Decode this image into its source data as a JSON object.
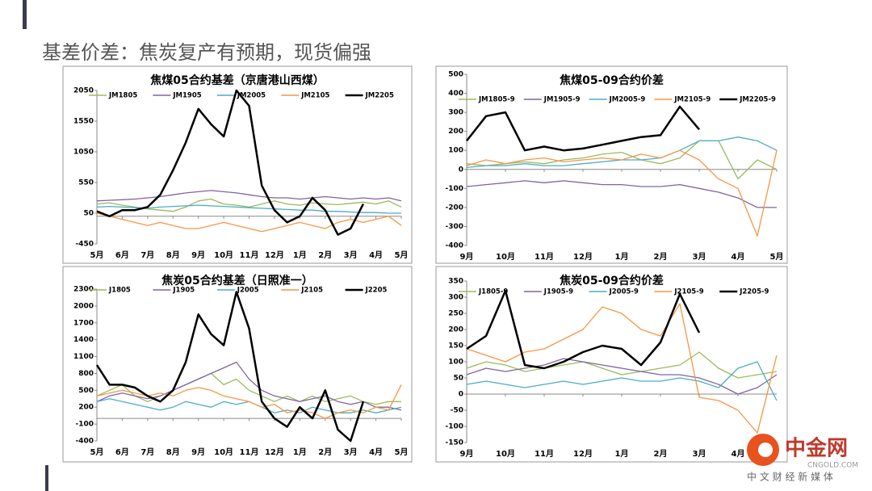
{
  "header": {
    "title": "基差价差：焦炭复产有预期，现货偏强"
  },
  "watermark": {
    "name": "中金网",
    "url": "CNGOLD.COM",
    "tagline": "中 文 财 经 新 媒 体"
  },
  "chart_data": [
    {
      "type": "line",
      "title": "焦煤05合约基差（京唐港山西煤）",
      "x": [
        0,
        0.5,
        1,
        1.5,
        2,
        2.5,
        3,
        3.5,
        4,
        4.5,
        5,
        5.5,
        6,
        6.5,
        7,
        7.5,
        8,
        8.5,
        9,
        9.5,
        10,
        10.5,
        11,
        11.5,
        12
      ],
      "xlim": [
        0,
        12
      ],
      "xticks": [
        {
          "value": 0,
          "label": "5月"
        },
        {
          "value": 1,
          "label": "6月"
        },
        {
          "value": 2,
          "label": "7月"
        },
        {
          "value": 3,
          "label": "8月"
        },
        {
          "value": 4,
          "label": "9月"
        },
        {
          "value": 5,
          "label": "10月"
        },
        {
          "value": 6,
          "label": "11月"
        },
        {
          "value": 7,
          "label": "12月"
        },
        {
          "value": 8,
          "label": "1月"
        },
        {
          "value": 9,
          "label": "2月"
        },
        {
          "value": 10,
          "label": "3月"
        },
        {
          "value": 11,
          "label": "4月"
        },
        {
          "value": 12,
          "label": "5月"
        }
      ],
      "ylim": [
        -450,
        2050
      ],
      "yticks": [
        -450,
        50,
        550,
        1050,
        1550,
        2050
      ],
      "series": [
        {
          "name": "JM1805",
          "color": "#9bbb59",
          "values": [
            200,
            220,
            180,
            150,
            120,
            100,
            80,
            150,
            250,
            280,
            200,
            180,
            150,
            200,
            250,
            200,
            180,
            220,
            200,
            190,
            210,
            230,
            200,
            250,
            150
          ]
        },
        {
          "name": "JM1905",
          "color": "#8064a2",
          "values": [
            250,
            260,
            270,
            280,
            300,
            320,
            350,
            380,
            400,
            420,
            400,
            380,
            350,
            320,
            300,
            300,
            280,
            300,
            320,
            300,
            280,
            300,
            280,
            300,
            250
          ]
        },
        {
          "name": "JM2005",
          "color": "#4bacc6",
          "values": [
            150,
            160,
            150,
            140,
            130,
            150,
            160,
            170,
            180,
            170,
            160,
            150,
            140,
            130,
            120,
            110,
            100,
            100,
            80,
            80,
            70,
            60,
            60,
            50,
            50
          ]
        },
        {
          "name": "JM2105",
          "color": "#f79646",
          "values": [
            50,
            0,
            -50,
            -100,
            -150,
            -100,
            -150,
            -200,
            -200,
            -150,
            -100,
            -150,
            -200,
            -250,
            -200,
            -150,
            -100,
            -150,
            -200,
            -100,
            -50,
            -100,
            -50,
            0,
            -150
          ]
        },
        {
          "name": "JM2205",
          "color": "#000000",
          "values": [
            80,
            0,
            100,
            100,
            150,
            350,
            750,
            1200,
            1750,
            1500,
            1300,
            2050,
            1800,
            500,
            100,
            -100,
            0,
            300,
            100,
            -300,
            -200,
            200,
            null,
            null,
            null
          ]
        }
      ]
    },
    {
      "type": "line",
      "title": "焦煤05-09合约价差",
      "x": [
        0,
        0.5,
        1,
        1.5,
        2,
        2.5,
        3,
        3.5,
        4,
        4.5,
        5,
        5.5,
        6,
        6.5,
        7,
        7.5,
        8
      ],
      "xlim": [
        0,
        8
      ],
      "xticks": [
        {
          "value": 0,
          "label": "9月"
        },
        {
          "value": 1,
          "label": "10月"
        },
        {
          "value": 2,
          "label": "11月"
        },
        {
          "value": 3,
          "label": "12月"
        },
        {
          "value": 4,
          "label": "1月"
        },
        {
          "value": 5,
          "label": "2月"
        },
        {
          "value": 6,
          "label": "3月"
        },
        {
          "value": 7,
          "label": "4月"
        },
        {
          "value": 8,
          "label": "5月"
        }
      ],
      "ylim": [
        -400,
        500
      ],
      "yticks": [
        -400,
        -300,
        -200,
        -100,
        0,
        100,
        200,
        300,
        400,
        500
      ],
      "series": [
        {
          "name": "JM1805-9",
          "color": "#9bbb59",
          "values": [
            30,
            20,
            30,
            40,
            30,
            50,
            60,
            80,
            90,
            50,
            30,
            60,
            150,
            150,
            -50,
            50,
            0
          ]
        },
        {
          "name": "JM1905-9",
          "color": "#8064a2",
          "values": [
            -90,
            -80,
            -70,
            -60,
            -70,
            -60,
            -70,
            -80,
            -80,
            -90,
            -90,
            -80,
            -100,
            -120,
            -150,
            -200,
            -200
          ]
        },
        {
          "name": "JM2005-9",
          "color": "#4bacc6",
          "values": [
            10,
            20,
            20,
            30,
            20,
            20,
            30,
            40,
            50,
            50,
            60,
            100,
            150,
            150,
            170,
            150,
            100
          ]
        },
        {
          "name": "JM2105-9",
          "color": "#f79646",
          "values": [
            20,
            50,
            30,
            50,
            60,
            40,
            50,
            60,
            50,
            80,
            60,
            100,
            50,
            -50,
            -100,
            -350,
            100
          ]
        },
        {
          "name": "JM2205-9",
          "color": "#000000",
          "values": [
            150,
            280,
            300,
            100,
            120,
            100,
            110,
            130,
            150,
            170,
            180,
            330,
            210,
            null,
            null,
            null,
            null
          ]
        }
      ]
    },
    {
      "type": "line",
      "title": "焦炭05合约基差（日照准一）",
      "x": [
        0,
        0.5,
        1,
        1.5,
        2,
        2.5,
        3,
        3.5,
        4,
        4.5,
        5,
        5.5,
        6,
        6.5,
        7,
        7.5,
        8,
        8.5,
        9,
        9.5,
        10,
        10.5,
        11,
        11.5,
        12
      ],
      "xlim": [
        0,
        12
      ],
      "xticks": [
        {
          "value": 0,
          "label": "5月"
        },
        {
          "value": 1,
          "label": "6月"
        },
        {
          "value": 2,
          "label": "7月"
        },
        {
          "value": 3,
          "label": "8月"
        },
        {
          "value": 4,
          "label": "9月"
        },
        {
          "value": 5,
          "label": "10月"
        },
        {
          "value": 6,
          "label": "11月"
        },
        {
          "value": 7,
          "label": "12月"
        },
        {
          "value": 8,
          "label": "1月"
        },
        {
          "value": 9,
          "label": "2月"
        },
        {
          "value": 10,
          "label": "3月"
        },
        {
          "value": 11,
          "label": "4月"
        },
        {
          "value": 12,
          "label": "5月"
        }
      ],
      "ylim": [
        -400,
        2300
      ],
      "yticks": [
        -400,
        -100,
        200,
        500,
        800,
        1100,
        1400,
        1700,
        2000,
        2300
      ],
      "series": [
        {
          "name": "J1805",
          "color": "#9bbb59",
          "values": [
            400,
            500,
            600,
            400,
            300,
            400,
            500,
            600,
            700,
            800,
            600,
            700,
            500,
            400,
            300,
            400,
            300,
            400,
            300,
            350,
            400,
            300,
            250,
            300,
            300
          ]
        },
        {
          "name": "J1905",
          "color": "#8064a2",
          "values": [
            300,
            400,
            450,
            400,
            350,
            400,
            500,
            600,
            700,
            800,
            900,
            1000,
            700,
            500,
            400,
            350,
            300,
            350,
            400,
            300,
            250,
            300,
            200,
            200,
            150
          ]
        },
        {
          "name": "J2005",
          "color": "#4bacc6",
          "values": [
            300,
            350,
            300,
            250,
            200,
            150,
            200,
            300,
            250,
            200,
            300,
            250,
            300,
            200,
            100,
            150,
            100,
            200,
            150,
            100,
            100,
            150,
            100,
            150,
            200
          ]
        },
        {
          "name": "J2105",
          "color": "#f79646",
          "values": [
            400,
            450,
            500,
            450,
            400,
            450,
            400,
            500,
            550,
            500,
            400,
            350,
            300,
            200,
            250,
            100,
            150,
            100,
            0,
            100,
            150,
            100,
            200,
            150,
            600
          ]
        },
        {
          "name": "J2205",
          "color": "#000000",
          "values": [
            950,
            600,
            600,
            550,
            400,
            300,
            500,
            1000,
            1850,
            1500,
            1300,
            2250,
            1600,
            300,
            0,
            -150,
            200,
            0,
            500,
            -200,
            -400,
            300,
            null,
            null,
            null
          ]
        }
      ]
    },
    {
      "type": "line",
      "title": "焦炭05-09合约价差",
      "x": [
        0,
        0.5,
        1,
        1.5,
        2,
        2.5,
        3,
        3.5,
        4,
        4.5,
        5,
        5.5,
        6,
        6.5,
        7,
        7.5,
        8
      ],
      "xlim": [
        0,
        8
      ],
      "xticks": [
        {
          "value": 0,
          "label": "9月"
        },
        {
          "value": 1,
          "label": "10月"
        },
        {
          "value": 2,
          "label": "11月"
        },
        {
          "value": 3,
          "label": "12月"
        },
        {
          "value": 4,
          "label": "1月"
        },
        {
          "value": 5,
          "label": "2月"
        },
        {
          "value": 6,
          "label": "3月"
        },
        {
          "value": 7,
          "label": "4月"
        }
      ],
      "ylim": [
        -150,
        350
      ],
      "yticks": [
        -150,
        -100,
        -50,
        0,
        50,
        100,
        150,
        200,
        250,
        300,
        350
      ],
      "series": [
        {
          "name": "J1805-9",
          "color": "#9bbb59",
          "values": [
            80,
            100,
            90,
            70,
            80,
            90,
            100,
            80,
            60,
            70,
            80,
            90,
            130,
            80,
            50,
            60,
            70
          ]
        },
        {
          "name": "J1905-9",
          "color": "#8064a2",
          "values": [
            60,
            80,
            70,
            80,
            90,
            110,
            100,
            90,
            80,
            70,
            60,
            60,
            50,
            30,
            0,
            20,
            60
          ]
        },
        {
          "name": "J2005-9",
          "color": "#4bacc6",
          "values": [
            30,
            40,
            30,
            20,
            30,
            40,
            30,
            40,
            50,
            40,
            40,
            50,
            40,
            20,
            80,
            100,
            -20
          ]
        },
        {
          "name": "J2105-9",
          "color": "#f79646",
          "values": [
            140,
            120,
            100,
            130,
            140,
            170,
            200,
            270,
            250,
            200,
            180,
            280,
            -10,
            -20,
            -50,
            -120,
            120
          ]
        },
        {
          "name": "J2205-9",
          "color": "#000000",
          "values": [
            140,
            180,
            320,
            90,
            80,
            100,
            130,
            150,
            140,
            90,
            160,
            310,
            190,
            null,
            null,
            null,
            null
          ]
        }
      ]
    }
  ]
}
